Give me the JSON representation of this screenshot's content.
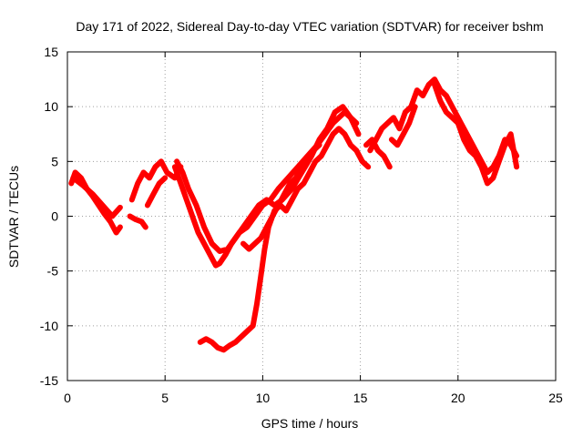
{
  "chart_data": {
    "type": "line",
    "title": "Day 171 of 2022, Sidereal Day-to-day VTEC variation (SDTVAR) for receiver bshm",
    "xlabel": "GPS time / hours",
    "ylabel": "SDTVAR / TECUs",
    "xlim": [
      0,
      25
    ],
    "ylim": [
      -15,
      15
    ],
    "xticks": [
      0,
      5,
      10,
      15,
      20,
      25
    ],
    "yticks": [
      -15,
      -10,
      -5,
      0,
      5,
      10,
      15
    ],
    "grid": true,
    "color": "#ff0000",
    "series": [
      {
        "name": "trace-1",
        "x": [
          0.2,
          0.4,
          0.7,
          1.0,
          1.3,
          1.6,
          1.9,
          2.2,
          2.5,
          2.7
        ],
        "y": [
          3.0,
          4.0,
          3.5,
          2.5,
          1.8,
          1.0,
          0.2,
          -0.5,
          -1.5,
          -1.0
        ]
      },
      {
        "name": "trace-2",
        "x": [
          0.3,
          0.8,
          1.3,
          1.8,
          2.3,
          2.7
        ],
        "y": [
          3.5,
          2.8,
          2.0,
          1.0,
          0.0,
          0.8
        ]
      },
      {
        "name": "trace-3",
        "x": [
          3.2,
          3.5,
          3.8,
          4.0
        ],
        "y": [
          0.0,
          -0.3,
          -0.5,
          -1.0
        ]
      },
      {
        "name": "trace-4",
        "x": [
          3.3,
          3.6,
          3.9,
          4.2,
          4.5,
          4.8,
          5.1,
          5.5,
          5.8
        ],
        "y": [
          1.5,
          3.0,
          4.0,
          3.5,
          4.5,
          5.0,
          4.0,
          3.5,
          4.5
        ]
      },
      {
        "name": "trace-5",
        "x": [
          4.1,
          4.4,
          4.7,
          5.0
        ],
        "y": [
          1.0,
          2.0,
          3.0,
          3.5
        ]
      },
      {
        "name": "trace-6",
        "x": [
          5.5,
          5.8,
          6.1,
          6.4,
          6.7,
          7.0,
          7.3,
          7.6,
          7.8,
          8.1,
          8.4,
          8.8,
          9.2,
          9.6,
          10.0,
          10.4,
          10.8,
          11.3,
          11.8,
          12.3,
          12.8,
          13.2,
          13.6,
          13.9,
          14.2,
          14.5,
          14.8
        ],
        "y": [
          4.5,
          3.0,
          1.5,
          0.0,
          -1.5,
          -2.5,
          -3.5,
          -4.5,
          -4.3,
          -3.5,
          -2.5,
          -1.5,
          -1.0,
          0.0,
          1.0,
          1.5,
          2.5,
          3.5,
          4.5,
          5.5,
          6.5,
          7.5,
          8.5,
          9.0,
          9.5,
          9.0,
          8.5
        ]
      },
      {
        "name": "trace-7",
        "x": [
          5.6,
          5.9,
          6.2,
          6.6,
          7.0,
          7.4,
          7.8,
          8.2,
          8.6,
          9.0,
          9.4,
          9.8,
          10.2,
          10.6,
          11.0,
          11.5,
          12.0,
          12.5,
          12.9,
          13.3,
          13.7,
          14.1,
          14.5,
          14.9
        ],
        "y": [
          5.0,
          4.0,
          2.5,
          1.0,
          -1.0,
          -2.5,
          -3.2,
          -3.0,
          -2.0,
          -1.0,
          0.0,
          1.0,
          1.5,
          1.0,
          1.5,
          2.5,
          4.0,
          5.5,
          7.0,
          8.0,
          9.5,
          10.0,
          9.0,
          7.5
        ]
      },
      {
        "name": "trace-8",
        "x": [
          6.8,
          7.1,
          7.4,
          7.7,
          8.0,
          8.3,
          8.6,
          8.9,
          9.2,
          9.5,
          9.7,
          9.9,
          10.1,
          10.3,
          10.6,
          10.9,
          11.2,
          11.5,
          11.8,
          12.1,
          12.4,
          12.7,
          13.0,
          13.3,
          13.6,
          13.9,
          14.2,
          14.5,
          14.8,
          15.1,
          15.4
        ],
        "y": [
          -11.5,
          -11.2,
          -11.5,
          -12.0,
          -12.2,
          -11.8,
          -11.5,
          -11.0,
          -10.5,
          -10.0,
          -8.0,
          -5.5,
          -3.0,
          -1.0,
          0.5,
          1.0,
          0.5,
          1.5,
          2.5,
          3.0,
          4.0,
          5.0,
          5.5,
          6.5,
          7.5,
          8.0,
          7.5,
          6.5,
          6.0,
          5.0,
          4.5
        ]
      },
      {
        "name": "trace-9",
        "x": [
          9.0,
          9.3,
          9.6,
          9.9,
          10.2,
          10.5,
          10.8,
          11.1,
          11.4,
          11.7,
          12.0,
          12.3,
          12.6,
          12.9
        ],
        "y": [
          -2.5,
          -3.0,
          -2.5,
          -2.0,
          -1.0,
          0.0,
          1.0,
          2.0,
          3.0,
          3.5,
          4.5,
          5.0,
          6.0,
          6.5
        ]
      },
      {
        "name": "trace-10",
        "x": [
          15.3,
          15.6,
          15.9,
          16.2,
          16.5
        ],
        "y": [
          6.5,
          7.0,
          6.0,
          5.5,
          4.5
        ]
      },
      {
        "name": "trace-11",
        "x": [
          15.5,
          15.8,
          16.1,
          16.4,
          16.7,
          17.0,
          17.3,
          17.6,
          17.9,
          18.2,
          18.5,
          18.8,
          19.1,
          19.4,
          19.7,
          20.0,
          20.3,
          20.6,
          20.9,
          21.2,
          21.5,
          21.8,
          22.1,
          22.4,
          22.7,
          23.0
        ],
        "y": [
          6.0,
          7.0,
          8.0,
          8.5,
          9.0,
          8.0,
          9.5,
          10.0,
          11.5,
          11.0,
          12.0,
          12.5,
          11.5,
          11.0,
          10.0,
          9.0,
          8.0,
          7.0,
          6.0,
          5.0,
          4.0,
          4.5,
          5.5,
          7.0,
          6.5,
          5.5
        ]
      },
      {
        "name": "trace-12",
        "x": [
          16.6,
          16.9,
          17.2,
          17.5,
          17.8
        ],
        "y": [
          7.0,
          6.5,
          7.5,
          8.5,
          10.0
        ]
      },
      {
        "name": "trace-13",
        "x": [
          18.8,
          19.1,
          19.4,
          19.7,
          20.0,
          20.3,
          20.6,
          20.9,
          21.2,
          21.5,
          21.8,
          22.1,
          22.4,
          22.7,
          23.0
        ],
        "y": [
          12.0,
          10.5,
          9.5,
          9.0,
          8.5,
          7.0,
          6.0,
          5.5,
          4.5,
          3.0,
          3.5,
          5.0,
          6.5,
          7.5,
          4.5
        ]
      }
    ]
  }
}
